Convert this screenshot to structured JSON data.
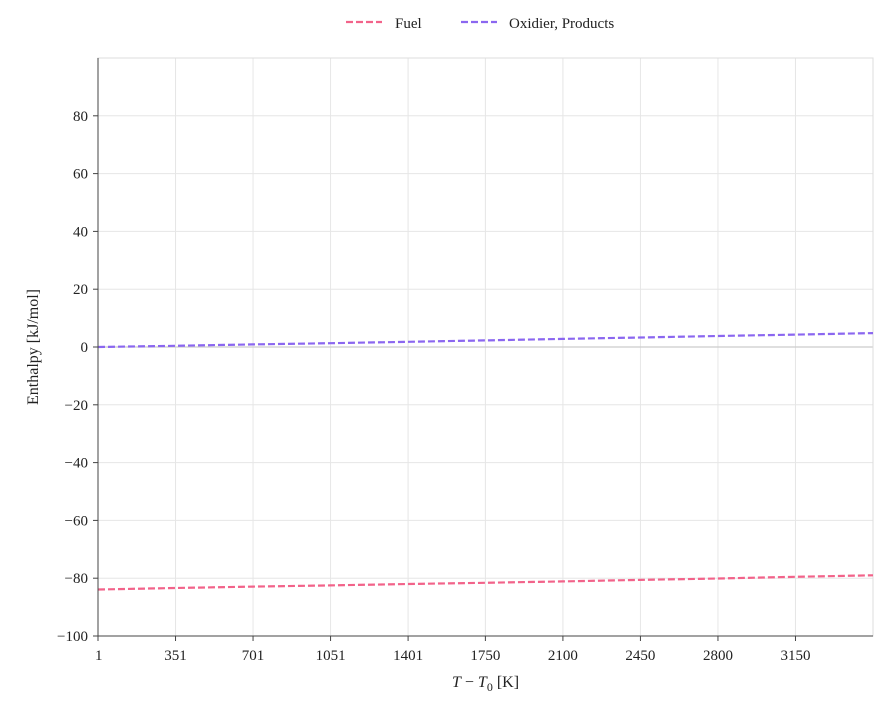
{
  "chart_data": {
    "type": "line",
    "title": "",
    "xlabel": "T − T0 [K]",
    "xlabel_main": "T",
    "xlabel_minus": " − ",
    "xlabel_sub_var": "T",
    "xlabel_sub": "0",
    "xlabel_unit": " [K]",
    "ylabel": "Enthalpy [kJ/mol]",
    "xlim": [
      1,
      3500
    ],
    "ylim": [
      -100,
      100
    ],
    "x_ticks": [
      1,
      351,
      701,
      1051,
      1401,
      1750,
      2100,
      2450,
      2800,
      3150
    ],
    "y_ticks": [
      -100,
      -80,
      -60,
      -40,
      -20,
      0,
      20,
      40,
      60,
      80
    ],
    "y_tick_labels": [
      "−100",
      "−80",
      "−60",
      "−40",
      "−20",
      "0",
      "20",
      "40",
      "60",
      "80"
    ],
    "grid": true,
    "legend_position": "top-center",
    "series": [
      {
        "name": "Fuel",
        "color": "#f2638a",
        "linestyle": "dashed",
        "x": [
          1,
          351,
          701,
          1051,
          1401,
          1750,
          2100,
          2450,
          2800,
          3150,
          3500
        ],
        "y": [
          -83.9,
          -83.4,
          -82.9,
          -82.5,
          -82.0,
          -81.6,
          -81.1,
          -80.6,
          -80.1,
          -79.5,
          -79.0
        ]
      },
      {
        "name": "Oxidier, Products",
        "color": "#8b67f0",
        "linestyle": "dashed",
        "x": [
          1,
          351,
          701,
          1051,
          1401,
          1750,
          2100,
          2450,
          2800,
          3150,
          3500
        ],
        "y": [
          0.0,
          0.4,
          0.9,
          1.3,
          1.8,
          2.3,
          2.8,
          3.3,
          3.8,
          4.3,
          4.8
        ]
      }
    ]
  }
}
